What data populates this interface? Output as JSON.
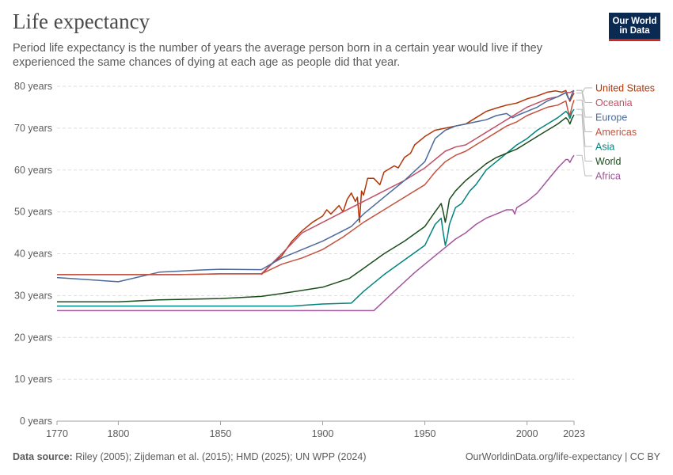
{
  "header": {
    "title": "Life expectancy",
    "subtitle": "Period life expectancy is the number of years the average person born in a certain year would live if they experienced the same chances of dying at each age as people did that year."
  },
  "logo": {
    "line1": "Our World",
    "line2": "in Data"
  },
  "footer": {
    "source_label": "Data source:",
    "source_text": "Riley (2005); Zijdeman et al. (2015); HMD (2025); UN WPP (2024)",
    "link_text": "OurWorldinData.org/life-expectancy | CC BY"
  },
  "chart_data": {
    "type": "line",
    "title": "Life expectancy",
    "xlabel": "",
    "ylabel": "",
    "xlim": [
      1770,
      2023
    ],
    "ylim": [
      0,
      80
    ],
    "x_ticks": [
      1770,
      1800,
      1850,
      1900,
      1950,
      2000,
      2023
    ],
    "y_ticks": [
      0,
      10,
      20,
      30,
      40,
      50,
      60,
      70,
      80
    ],
    "y_tick_suffix": " years",
    "grid": "horizontal dashed",
    "legend": "right, labels at line ends",
    "series": [
      {
        "name": "United States",
        "color": "#b13507",
        "points": [
          [
            1870,
            35
          ],
          [
            1875,
            37.5
          ],
          [
            1880,
            39.5
          ],
          [
            1885,
            43
          ],
          [
            1890,
            45.5
          ],
          [
            1895,
            47.5
          ],
          [
            1900,
            49
          ],
          [
            1902,
            50.5
          ],
          [
            1904,
            49.5
          ],
          [
            1906,
            50.5
          ],
          [
            1908,
            51.5
          ],
          [
            1910,
            50
          ],
          [
            1912,
            53
          ],
          [
            1914,
            54.5
          ],
          [
            1916,
            52.5
          ],
          [
            1917,
            53.5
          ],
          [
            1918,
            47.5
          ],
          [
            1919,
            55
          ],
          [
            1920,
            54
          ],
          [
            1922,
            58
          ],
          [
            1925,
            58
          ],
          [
            1928,
            56.5
          ],
          [
            1930,
            59.5
          ],
          [
            1935,
            61
          ],
          [
            1937,
            60.5
          ],
          [
            1940,
            63
          ],
          [
            1943,
            64
          ],
          [
            1945,
            66
          ],
          [
            1950,
            68
          ],
          [
            1955,
            69.5
          ],
          [
            1960,
            70
          ],
          [
            1965,
            70.5
          ],
          [
            1970,
            71
          ],
          [
            1975,
            72.5
          ],
          [
            1980,
            74
          ],
          [
            1985,
            74.8
          ],
          [
            1990,
            75.5
          ],
          [
            1995,
            76
          ],
          [
            2000,
            77
          ],
          [
            2005,
            77.7
          ],
          [
            2010,
            78.6
          ],
          [
            2014,
            78.9
          ],
          [
            2017,
            78.6
          ],
          [
            2019,
            79
          ],
          [
            2020,
            77.5
          ],
          [
            2021,
            76.4
          ],
          [
            2022,
            77.5
          ],
          [
            2023,
            78.4
          ]
        ]
      },
      {
        "name": "Oceania",
        "color": "#c15065",
        "points": [
          [
            1770,
            35
          ],
          [
            1800,
            35
          ],
          [
            1830,
            35
          ],
          [
            1850,
            35.2
          ],
          [
            1870,
            35.2
          ],
          [
            1880,
            40
          ],
          [
            1890,
            45
          ],
          [
            1900,
            47.5
          ],
          [
            1910,
            50
          ],
          [
            1920,
            52.5
          ],
          [
            1930,
            55
          ],
          [
            1940,
            57.5
          ],
          [
            1950,
            60.5
          ],
          [
            1955,
            62.5
          ],
          [
            1960,
            64.5
          ],
          [
            1965,
            65.5
          ],
          [
            1970,
            66
          ],
          [
            1975,
            67.5
          ],
          [
            1980,
            69
          ],
          [
            1985,
            70.5
          ],
          [
            1990,
            72
          ],
          [
            1995,
            73.5
          ],
          [
            2000,
            75
          ],
          [
            2005,
            76
          ],
          [
            2010,
            77
          ],
          [
            2015,
            77.5
          ],
          [
            2019,
            78.5
          ],
          [
            2021,
            78.5
          ],
          [
            2023,
            79
          ]
        ]
      },
      {
        "name": "Europe",
        "color": "#4c6a9c",
        "points": [
          [
            1770,
            34.3
          ],
          [
            1800,
            33.3
          ],
          [
            1820,
            35.6
          ],
          [
            1840,
            36.1
          ],
          [
            1850,
            36.3
          ],
          [
            1870,
            36.2
          ],
          [
            1880,
            39
          ],
          [
            1890,
            41
          ],
          [
            1900,
            43
          ],
          [
            1910,
            45.5
          ],
          [
            1914,
            46.5
          ],
          [
            1918,
            48.5
          ],
          [
            1920,
            49.5
          ],
          [
            1930,
            53.5
          ],
          [
            1940,
            57.5
          ],
          [
            1950,
            62
          ],
          [
            1955,
            67.5
          ],
          [
            1960,
            69.5
          ],
          [
            1965,
            70.5
          ],
          [
            1970,
            71
          ],
          [
            1975,
            71.5
          ],
          [
            1980,
            72
          ],
          [
            1985,
            73
          ],
          [
            1990,
            73.5
          ],
          [
            1993,
            72.5
          ],
          [
            1995,
            73
          ],
          [
            2000,
            74
          ],
          [
            2005,
            75
          ],
          [
            2010,
            76.5
          ],
          [
            2015,
            77.5
          ],
          [
            2019,
            78.5
          ],
          [
            2020,
            77.3
          ],
          [
            2021,
            76.8
          ],
          [
            2022,
            78.2
          ],
          [
            2023,
            79
          ]
        ]
      },
      {
        "name": "Americas",
        "color": "#c4523e",
        "points": [
          [
            1770,
            35
          ],
          [
            1800,
            35
          ],
          [
            1830,
            35
          ],
          [
            1850,
            35.2
          ],
          [
            1870,
            35.2
          ],
          [
            1880,
            37.5
          ],
          [
            1890,
            39
          ],
          [
            1900,
            41
          ],
          [
            1910,
            44
          ],
          [
            1920,
            47.5
          ],
          [
            1930,
            50.5
          ],
          [
            1940,
            53.5
          ],
          [
            1950,
            56.5
          ],
          [
            1955,
            59.5
          ],
          [
            1960,
            62
          ],
          [
            1965,
            63.5
          ],
          [
            1970,
            64.5
          ],
          [
            1975,
            66
          ],
          [
            1980,
            67.5
          ],
          [
            1985,
            69
          ],
          [
            1990,
            70.5
          ],
          [
            1995,
            71.5
          ],
          [
            2000,
            73
          ],
          [
            2005,
            74
          ],
          [
            2010,
            75
          ],
          [
            2015,
            75.5
          ],
          [
            2019,
            76.5
          ],
          [
            2020,
            74.2
          ],
          [
            2021,
            73
          ],
          [
            2022,
            75.2
          ],
          [
            2023,
            76.7
          ]
        ]
      },
      {
        "name": "Asia",
        "color": "#00847e",
        "points": [
          [
            1770,
            27.5
          ],
          [
            1800,
            27.5
          ],
          [
            1850,
            27.5
          ],
          [
            1885,
            27.5
          ],
          [
            1900,
            28
          ],
          [
            1914,
            28.2
          ],
          [
            1920,
            31
          ],
          [
            1930,
            35
          ],
          [
            1940,
            38.5
          ],
          [
            1950,
            42
          ],
          [
            1955,
            47
          ],
          [
            1958,
            48.5
          ],
          [
            1959,
            45
          ],
          [
            1960,
            42
          ],
          [
            1961,
            44
          ],
          [
            1962,
            47
          ],
          [
            1965,
            51
          ],
          [
            1968,
            52
          ],
          [
            1970,
            53.5
          ],
          [
            1972,
            55
          ],
          [
            1975,
            56.5
          ],
          [
            1980,
            60
          ],
          [
            1985,
            62
          ],
          [
            1990,
            64
          ],
          [
            1995,
            66
          ],
          [
            2000,
            67.5
          ],
          [
            2005,
            69.5
          ],
          [
            2010,
            71
          ],
          [
            2015,
            72.5
          ],
          [
            2019,
            74
          ],
          [
            2020,
            73.5
          ],
          [
            2021,
            72.3
          ],
          [
            2022,
            73.8
          ],
          [
            2023,
            74.5
          ]
        ]
      },
      {
        "name": "World",
        "color": "#1b4d1b",
        "points": [
          [
            1770,
            28.5
          ],
          [
            1800,
            28.5
          ],
          [
            1820,
            29
          ],
          [
            1850,
            29.3
          ],
          [
            1870,
            29.8
          ],
          [
            1880,
            30.5
          ],
          [
            1900,
            32
          ],
          [
            1913,
            34.1
          ],
          [
            1920,
            36.5
          ],
          [
            1930,
            40
          ],
          [
            1940,
            43
          ],
          [
            1950,
            46.5
          ],
          [
            1955,
            50
          ],
          [
            1958,
            52
          ],
          [
            1959,
            50
          ],
          [
            1960,
            47.5
          ],
          [
            1961,
            50
          ],
          [
            1962,
            53
          ],
          [
            1965,
            55
          ],
          [
            1970,
            57.5
          ],
          [
            1975,
            59.5
          ],
          [
            1980,
            61.5
          ],
          [
            1985,
            63
          ],
          [
            1990,
            64
          ],
          [
            1995,
            65
          ],
          [
            2000,
            66.5
          ],
          [
            2005,
            68
          ],
          [
            2010,
            69.5
          ],
          [
            2015,
            71
          ],
          [
            2019,
            72.5
          ],
          [
            2020,
            72
          ],
          [
            2021,
            71
          ],
          [
            2022,
            72.3
          ],
          [
            2023,
            73.2
          ]
        ]
      },
      {
        "name": "Africa",
        "color": "#a2559c",
        "points": [
          [
            1770,
            26.4
          ],
          [
            1800,
            26.4
          ],
          [
            1850,
            26.4
          ],
          [
            1900,
            26.4
          ],
          [
            1925,
            26.4
          ],
          [
            1935,
            31
          ],
          [
            1945,
            35.5
          ],
          [
            1950,
            37.5
          ],
          [
            1955,
            39.5
          ],
          [
            1960,
            41.5
          ],
          [
            1965,
            43.5
          ],
          [
            1970,
            45
          ],
          [
            1975,
            47
          ],
          [
            1980,
            48.5
          ],
          [
            1985,
            49.5
          ],
          [
            1990,
            50.5
          ],
          [
            1993,
            50.5
          ],
          [
            1994,
            49.5
          ],
          [
            1995,
            51
          ],
          [
            2000,
            52.5
          ],
          [
            2005,
            54.5
          ],
          [
            2010,
            57.5
          ],
          [
            2015,
            60.5
          ],
          [
            2019,
            62.5
          ],
          [
            2020,
            62.5
          ],
          [
            2021,
            61.8
          ],
          [
            2022,
            62.8
          ],
          [
            2023,
            63.5
          ]
        ]
      }
    ]
  }
}
